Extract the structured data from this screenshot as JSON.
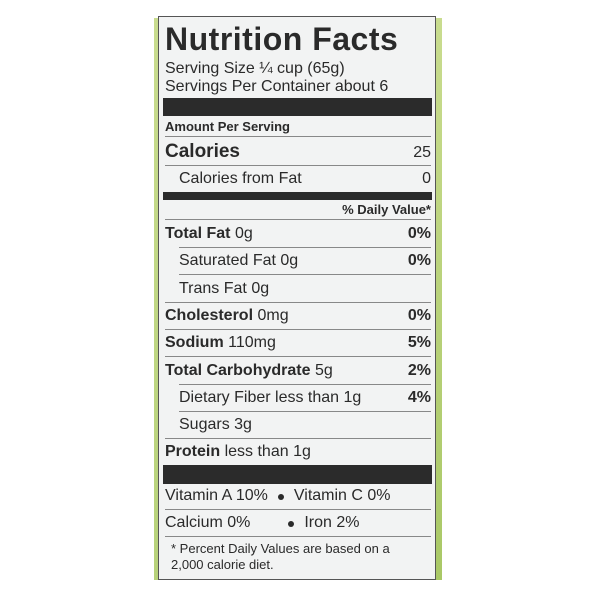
{
  "title": "Nutrition Facts",
  "serving_size": "Serving Size ¼ cup (65g)",
  "servings_per_container": "Servings Per Container about 6",
  "amount_per_serving": "Amount Per Serving",
  "calories": {
    "label": "Calories",
    "value": "25"
  },
  "calories_from_fat": {
    "label": "Calories from Fat",
    "value": "0"
  },
  "daily_value_header": "% Daily Value*",
  "nutrients": [
    {
      "label": "Total Fat",
      "amount": "0g",
      "dv": "0%"
    },
    {
      "label": "Saturated Fat",
      "amount": "0g",
      "dv": "0%"
    },
    {
      "label": "Trans Fat",
      "amount": "0g",
      "dv": ""
    },
    {
      "label": "Cholesterol",
      "amount": "0mg",
      "dv": "0%"
    },
    {
      "label": "Sodium",
      "amount": "110mg",
      "dv": "5%"
    },
    {
      "label": "Total Carbohydrate",
      "amount": "5g",
      "dv": "2%"
    },
    {
      "label": "Dietary Fiber",
      "amount": "less than 1g",
      "dv": "4%"
    },
    {
      "label": "Sugars",
      "amount": "3g",
      "dv": ""
    },
    {
      "label": "Protein",
      "amount": "less than 1g",
      "dv": ""
    }
  ],
  "vitamins": [
    [
      "Vitamin A 10%",
      "Vitamin C 0%"
    ],
    [
      "Calcium 0%",
      "Iron 2%"
    ]
  ],
  "footnote": "* Percent Daily Values are based on a 2,000 calorie diet."
}
